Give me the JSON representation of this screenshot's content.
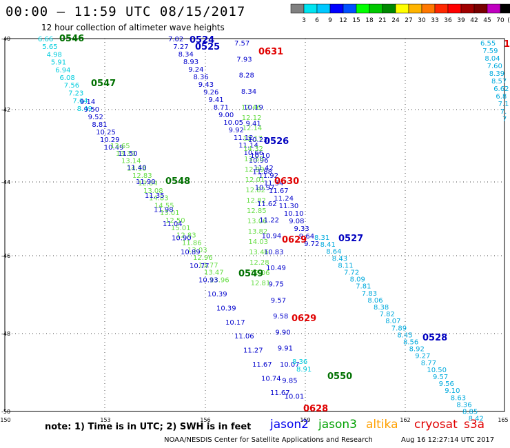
{
  "header": {
    "title": "00:00 – 11:59 UTC 08/15/2017",
    "subtitle": "12 hour collection of altimeter wave heights"
  },
  "legend": {
    "swatches": [
      "#808080",
      "#00e4f0",
      "#00c8ff",
      "#0000ff",
      "#0050ff",
      "#00ff00",
      "#00c800",
      "#008800",
      "#ffff00",
      "#ffb400",
      "#ff7800",
      "#ff2800",
      "#ff0000",
      "#a00000",
      "#780000",
      "#c000c0",
      "#000000"
    ],
    "labels": [
      "3",
      "6",
      "9",
      "12",
      "15",
      "18",
      "21",
      "24",
      "27",
      "30",
      "33",
      "36",
      "39",
      "42",
      "45",
      "70",
      "(ft)"
    ]
  },
  "axes": {
    "lon_ticks": [
      "150",
      "153",
      "156",
      "159",
      "162",
      "165"
    ],
    "lat_ticks": [
      "-40",
      "-42",
      "-44",
      "-46",
      "-48",
      "-50"
    ]
  },
  "map": {
    "pass_labels": [
      {
        "text": "0546",
        "color": "#007000"
      },
      {
        "text": "0547",
        "color": "#007000"
      },
      {
        "text": "0548",
        "color": "#007000"
      },
      {
        "text": "0549",
        "color": "#007000"
      },
      {
        "text": "0550",
        "color": "#007000"
      },
      {
        "text": "0524",
        "color": "#0000c0"
      },
      {
        "text": "0525",
        "color": "#0000c0"
      },
      {
        "text": "0526",
        "color": "#0000c0"
      },
      {
        "text": "0527",
        "color": "#0000c0"
      },
      {
        "text": "0528",
        "color": "#0000c0"
      },
      {
        "text": "0631",
        "color": "#e00000"
      },
      {
        "text": "0630",
        "color": "#e00000"
      },
      {
        "text": "0629",
        "color": "#e00000"
      },
      {
        "text": "0629",
        "color": "#e00000"
      },
      {
        "text": "0628",
        "color": "#e00000"
      },
      {
        "text": "1",
        "color": "#e00000"
      }
    ],
    "tracks": [
      {
        "id": "jason3-left-cyan",
        "color": "#00ccdd",
        "values": [
          "6.66",
          "5.65",
          "4.98",
          "5.91",
          "6.94",
          "6.08",
          "7.56",
          "7.23",
          "7.64",
          "8.49"
        ]
      },
      {
        "id": "jason3-left-blue",
        "color": "#0000cc",
        "values": [
          "9.14",
          "9.50",
          "9.52",
          "8.81",
          "10.25",
          "10.29",
          "10.49"
        ]
      },
      {
        "id": "jason3-left-green",
        "color": "#66dd44",
        "values": [
          "13.65",
          "13.30",
          "13.14",
          "14.18",
          "12.83",
          "12.84",
          "13.08",
          "14.83",
          "14.55",
          "13.01",
          "12.50",
          "15.01",
          "12.83",
          "11.86",
          "13.03",
          "12.96",
          "13.77",
          "13.47",
          "13.96"
        ]
      },
      {
        "id": "jason3-left-blue2",
        "color": "#0000cc",
        "values": [
          "11.50",
          "11.40",
          "11.90",
          "11.35",
          "11.98",
          "11.04",
          "10.90",
          "10.89",
          "10.77",
          "10.93",
          "10.39",
          "10.39",
          "10.17",
          "11.06",
          "11.27",
          "11.67",
          "10.74",
          "11.67"
        ]
      },
      {
        "id": "jason2-mid-blue",
        "color": "#0000cc",
        "values": [
          "7.02",
          "7.27",
          "8.34",
          "8.93",
          "9.24",
          "8.36",
          "9.43",
          "9.26",
          "9.41",
          "8.71",
          "9.00",
          "10.05",
          "9.92",
          "11.12",
          "11.14",
          "10.66",
          "10.96",
          "11.42",
          "11.92",
          "11.54",
          "11.67",
          "11.24",
          "11.30",
          "10.10",
          "9.08",
          "9.33",
          "9.64",
          "9.72"
        ]
      },
      {
        "id": "jason2-mid-green",
        "color": "#66dd44",
        "values": [
          "12.46",
          "12.12",
          "12.14",
          "12.17",
          "14.32",
          "13.55",
          "12.99",
          "12.01",
          "12.82",
          "12.82",
          "12.85",
          "13.06",
          "13.82",
          "14.03",
          "13.46",
          "12.28",
          "12.06",
          "12.81"
        ]
      },
      {
        "id": "jason2-right-blue",
        "color": "#0000cc",
        "values": [
          "7.57",
          "7.93",
          "8.28",
          "8.34",
          "10.19",
          "9.41",
          "10.23",
          "10.10",
          "11.88",
          "10.97",
          "11.62",
          "11.22",
          "10.94",
          "10.83",
          "10.49",
          "9.75",
          "9.57",
          "9.58",
          "9.90",
          "9.91",
          "10.07",
          "9.85",
          "10.01"
        ]
      },
      {
        "id": "altika-right-cyan",
        "color": "#00aadd",
        "values": [
          "8.31",
          "8.41",
          "8.64",
          "8.43",
          "8.11",
          "7.72",
          "8.09",
          "7.81",
          "7.83",
          "8.06",
          "8.38",
          "7.82",
          "8.07",
          "7.89",
          "8.45",
          "8.56",
          "8.92",
          "9.27",
          "8.77",
          "10.50",
          "9.57",
          "9.56",
          "9.10",
          "8.63",
          "8.36",
          "8.85",
          "8.42"
        ]
      },
      {
        "id": "edge-right-cyan",
        "color": "#00aadd",
        "values": [
          "6.55",
          "7.59",
          "8.04",
          "7.60",
          "8.39",
          "8.57",
          "6.62",
          "6.8",
          "7.1",
          "7.",
          "7"
        ]
      },
      {
        "id": "extra-cyan",
        "color": "#00ccdd",
        "values": [
          "8.36",
          "8.91"
        ]
      }
    ]
  },
  "footer": {
    "note": "note:  1) Time is in UTC;  2) SWH is in feet",
    "satellites": [
      {
        "name": "jason2",
        "color": "#0000ee"
      },
      {
        "name": "jason3",
        "color": "#00a000"
      },
      {
        "name": "altika",
        "color": "#ffa000"
      },
      {
        "name": "cryosat",
        "color": "#e00000"
      },
      {
        "name": "s3a",
        "color": "#e00000"
      }
    ],
    "credit": "NOAA/NESDIS Center for Satellite Applications and Research",
    "timestamp": "Aug 16 12:27:14 UTC 2017"
  }
}
